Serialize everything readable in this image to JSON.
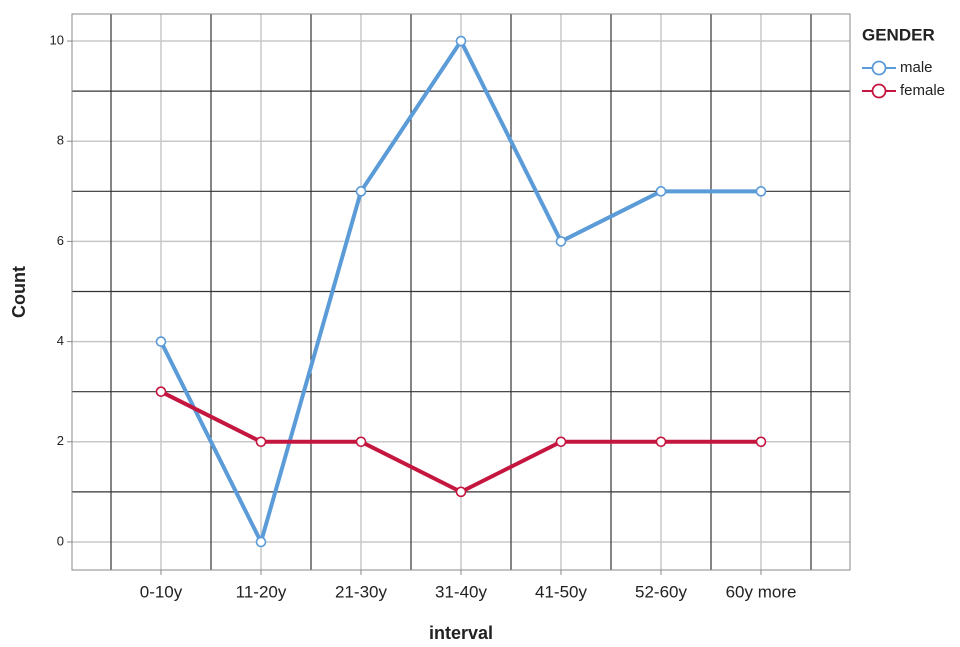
{
  "chart_data": {
    "type": "line",
    "x_label": "interval",
    "y_label": "Count",
    "legend_title": "GENDER",
    "legend": "right",
    "categories": [
      "0-10y",
      "11-20y",
      "21-30y",
      "31-40y",
      "41-50y",
      "52-60y",
      "60y more"
    ],
    "series": [
      {
        "name": "male",
        "color": "#5b9bd8",
        "values": [
          4,
          0,
          7,
          10,
          6,
          7,
          7
        ]
      },
      {
        "name": "female",
        "color": "#c4163f",
        "values": [
          3,
          2,
          2,
          1,
          2,
          2,
          2
        ]
      }
    ],
    "ylim": [
      -0.56,
      10.54
    ],
    "yticks": [
      0,
      2,
      4,
      6,
      8,
      10
    ],
    "minor_yticks": [
      1,
      3,
      5,
      7,
      9
    ],
    "grid": true
  }
}
